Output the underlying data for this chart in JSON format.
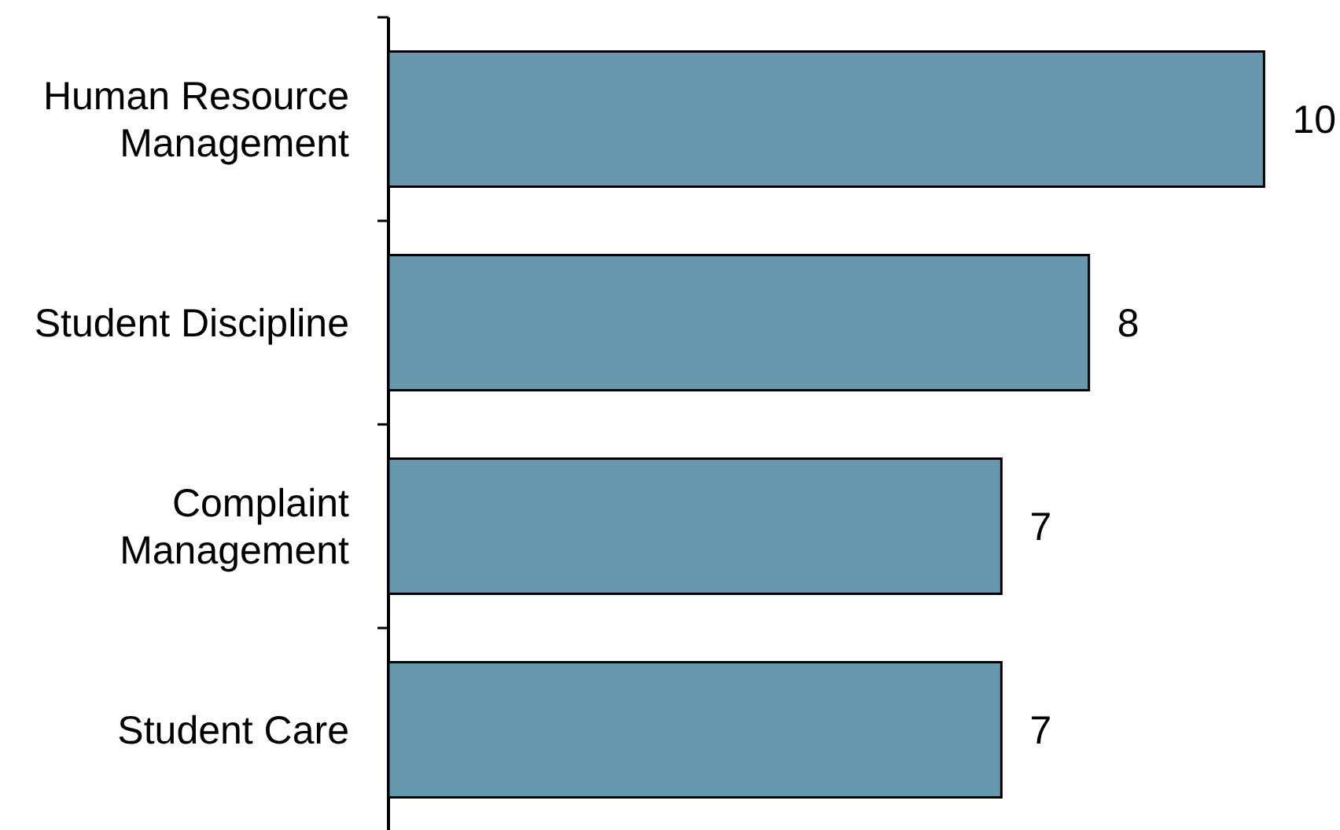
{
  "chart_data": {
    "type": "bar",
    "orientation": "horizontal",
    "categories": [
      "Human Resource\nManagement",
      "Student Discipline",
      "Complaint\nManagement",
      "Student Care"
    ],
    "values": [
      10,
      8,
      7,
      7
    ],
    "color": "#6798ae",
    "xlim": [
      0,
      10
    ],
    "data_labels": true,
    "tick_labels": "y"
  }
}
